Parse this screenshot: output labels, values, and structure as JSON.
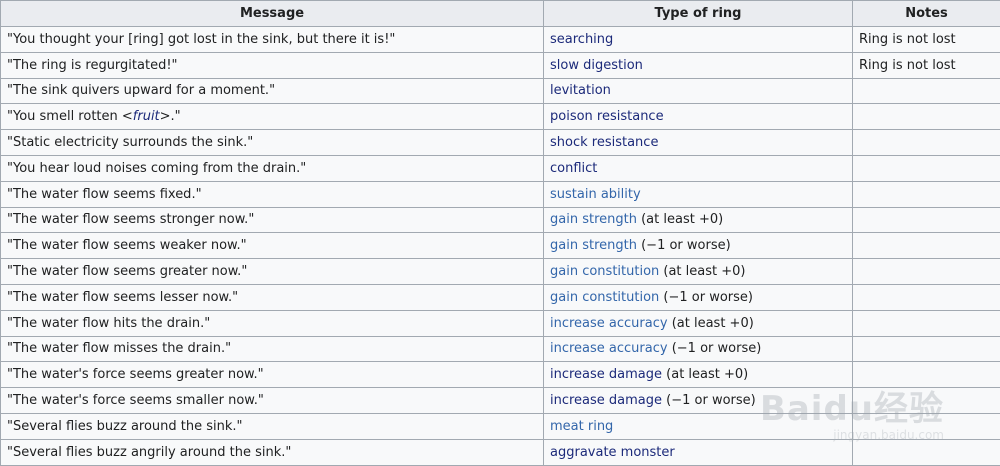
{
  "table": {
    "headers": [
      "Message",
      "Type of ring",
      "Notes"
    ],
    "rows": [
      {
        "message": "\"You thought your [ring] got lost in the sink, but there it is!\"",
        "ring": "searching",
        "qual": "",
        "notes": "Ring is not lost",
        "link_color": "#1c2a7a"
      },
      {
        "message": "\"The ring is regurgitated!\"",
        "ring": "slow digestion",
        "qual": "",
        "notes": "Ring is not lost",
        "link_color": "#1c2a7a"
      },
      {
        "message": "\"The sink quivers upward for a moment.\"",
        "ring": "levitation",
        "qual": "",
        "notes": "",
        "link_color": "#1c2a7a"
      },
      {
        "message_pre": "\"You smell rotten <",
        "message_em": "fruit",
        "message_post": ">.\"",
        "ring": "poison resistance",
        "qual": "",
        "notes": "",
        "link_color": "#1c2a7a"
      },
      {
        "message": "\"Static electricity surrounds the sink.\"",
        "ring": "shock resistance",
        "qual": "",
        "notes": "",
        "link_color": "#1c2a7a"
      },
      {
        "message": "\"You hear loud noises coming from the drain.\"",
        "ring": "conflict",
        "qual": "",
        "notes": "",
        "link_color": "#1c2a7a"
      },
      {
        "message": "\"The water flow seems fixed.\"",
        "ring": "sustain ability",
        "qual": "",
        "notes": "",
        "link_color": "#3366aa"
      },
      {
        "message": "\"The water flow seems stronger now.\"",
        "ring": "gain strength",
        "qual": " (at least +0)",
        "notes": "",
        "link_color": "#3366aa"
      },
      {
        "message": "\"The water flow seems weaker now.\"",
        "ring": "gain strength",
        "qual": " (−1 or worse)",
        "notes": "",
        "link_color": "#3366aa"
      },
      {
        "message": "\"The water flow seems greater now.\"",
        "ring": "gain constitution",
        "qual": " (at least +0)",
        "notes": "",
        "link_color": "#3366aa"
      },
      {
        "message": "\"The water flow seems lesser now.\"",
        "ring": "gain constitution",
        "qual": " (−1 or worse)",
        "notes": "",
        "link_color": "#3366aa"
      },
      {
        "message": "\"The water flow hits the drain.\"",
        "ring": "increase accuracy",
        "qual": " (at least +0)",
        "notes": "",
        "link_color": "#3366aa"
      },
      {
        "message": "\"The water flow misses the drain.\"",
        "ring": "increase accuracy",
        "qual": " (−1 or worse)",
        "notes": "",
        "link_color": "#3366aa"
      },
      {
        "message": "\"The water's force seems greater now.\"",
        "ring": "increase damage",
        "qual": " (at least +0)",
        "notes": "",
        "link_color": "#1c2a7a"
      },
      {
        "message": "\"The water's force seems smaller now.\"",
        "ring": "increase damage",
        "qual": " (−1 or worse)",
        "notes": "",
        "link_color": "#1c2a7a"
      },
      {
        "message": "\"Several flies buzz around the sink.\"",
        "ring": "meat ring",
        "qual": "",
        "notes": "",
        "link_color": "#3366aa"
      },
      {
        "message": "\"Several flies buzz angrily around the sink.\"",
        "ring": "aggravate monster",
        "qual": "",
        "notes": "",
        "link_color": "#1c2a7a"
      }
    ]
  },
  "watermark": {
    "main": "Baidu经验",
    "sub": "jingyan.baidu.com"
  }
}
